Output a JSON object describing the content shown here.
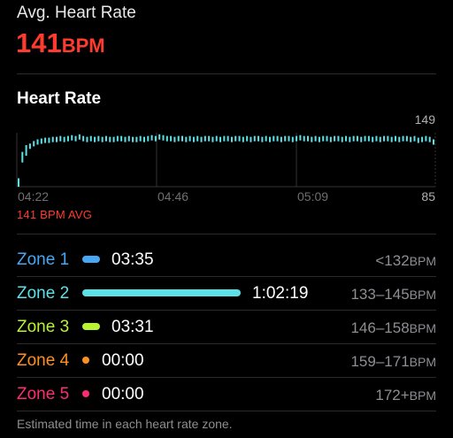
{
  "summary": {
    "label": "Avg. Heart Rate",
    "value": "141",
    "unit": "BPM"
  },
  "heart_rate": {
    "title": "Heart Rate",
    "y_max_label": "149",
    "y_min_label": "85",
    "x_labels": [
      "04:22",
      "04:46",
      "05:09"
    ],
    "avg_caption": "141 BPM AVG",
    "line_color": "#5ce1e6"
  },
  "chart_data": {
    "type": "bar",
    "title": "Heart Rate",
    "ylim": [
      85,
      149
    ],
    "x_tick_labels": [
      "04:22",
      "04:46",
      "05:09"
    ],
    "series": [
      {
        "values": [
          95,
          120,
          128,
          133,
          136,
          138,
          139,
          140,
          140,
          141,
          141,
          142,
          141,
          142,
          143,
          142,
          144,
          142,
          141,
          142,
          141,
          142,
          141,
          142,
          141,
          141,
          142,
          142,
          141,
          142,
          141,
          141,
          142,
          141,
          142,
          143,
          142,
          144,
          143,
          142,
          142,
          141,
          142,
          142,
          141,
          142,
          141,
          142,
          141,
          142,
          142,
          141,
          142,
          141,
          142,
          142,
          141,
          142,
          142,
          141,
          142,
          141,
          142,
          142,
          141,
          142,
          141,
          142,
          142,
          141,
          142,
          142,
          141,
          142,
          143,
          142,
          142,
          141,
          142,
          141,
          142,
          142,
          141,
          142,
          142,
          141,
          142,
          141,
          142,
          142,
          141,
          142,
          142,
          141,
          142,
          141,
          142,
          142,
          141,
          142,
          141,
          142,
          142,
          141,
          142,
          140,
          141,
          142,
          141,
          138
        ]
      }
    ]
  },
  "zones": [
    {
      "name": "Zone 1",
      "time": "03:35",
      "range": "<132",
      "unit": "BPM",
      "color": "#48a7f5",
      "fraction": 0.057
    },
    {
      "name": "Zone 2",
      "time": "1:02:19",
      "range": "133–145",
      "unit": "BPM",
      "color": "#5ce1e6",
      "fraction": 1.0
    },
    {
      "name": "Zone 3",
      "time": "03:31",
      "range": "146–158",
      "unit": "BPM",
      "color": "#b8f430",
      "fraction": 0.056
    },
    {
      "name": "Zone 4",
      "time": "00:00",
      "range": "159–171",
      "unit": "BPM",
      "color": "#ff9020",
      "fraction": 0
    },
    {
      "name": "Zone 5",
      "time": "00:00",
      "range": "172+",
      "unit": "BPM",
      "color": "#ff2d70",
      "fraction": 0
    }
  ],
  "footnote": "Estimated time in each heart rate zone."
}
